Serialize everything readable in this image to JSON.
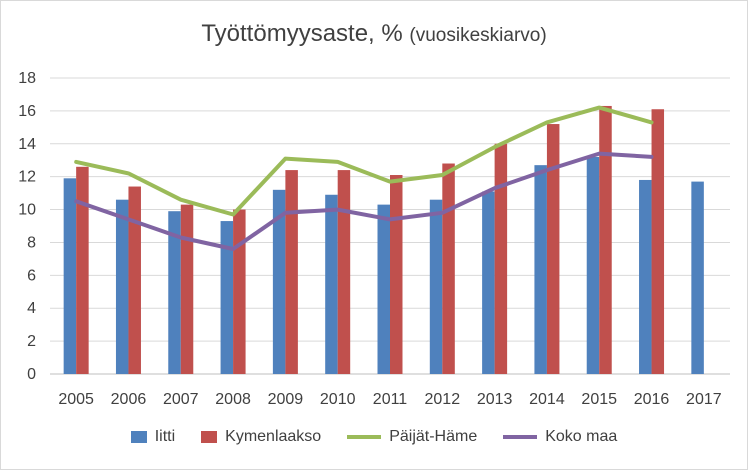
{
  "chart_data": {
    "type": "bar",
    "title": "Työttömyysaste, %",
    "subtitle": "(vuosikeskiarvo)",
    "xlabel": "",
    "ylabel": "",
    "categories": [
      "2005",
      "2006",
      "2007",
      "2008",
      "2009",
      "2010",
      "2011",
      "2012",
      "2013",
      "2014",
      "2015",
      "2016",
      "2017"
    ],
    "ylim": [
      0,
      18
    ],
    "yticks": [
      "0",
      "2",
      "4",
      "6",
      "8",
      "10",
      "12",
      "14",
      "16",
      "18"
    ],
    "grid": true,
    "legend_position": "bottom",
    "series": [
      {
        "name": "Iitti",
        "kind": "bar",
        "color": "#4f81bd",
        "values": [
          11.9,
          10.6,
          9.9,
          9.3,
          11.2,
          10.9,
          10.3,
          10.6,
          11.1,
          12.7,
          13.2,
          11.8,
          11.7
        ]
      },
      {
        "name": "Kymenlaakso",
        "kind": "bar",
        "color": "#c0504d",
        "values": [
          12.6,
          11.4,
          10.3,
          10.0,
          12.4,
          12.4,
          12.1,
          12.8,
          14.0,
          15.2,
          16.3,
          16.1,
          null
        ]
      },
      {
        "name": "Päijät-Häme",
        "kind": "line",
        "color": "#9bbb59",
        "values": [
          12.9,
          12.2,
          10.6,
          9.7,
          13.1,
          12.9,
          11.7,
          12.1,
          13.8,
          15.3,
          16.2,
          15.3,
          null
        ]
      },
      {
        "name": "Koko maa",
        "kind": "line",
        "color": "#8064a2",
        "values": [
          10.5,
          9.4,
          8.3,
          7.6,
          9.8,
          10.0,
          9.4,
          9.8,
          11.3,
          12.4,
          13.4,
          13.2,
          null
        ]
      }
    ]
  }
}
